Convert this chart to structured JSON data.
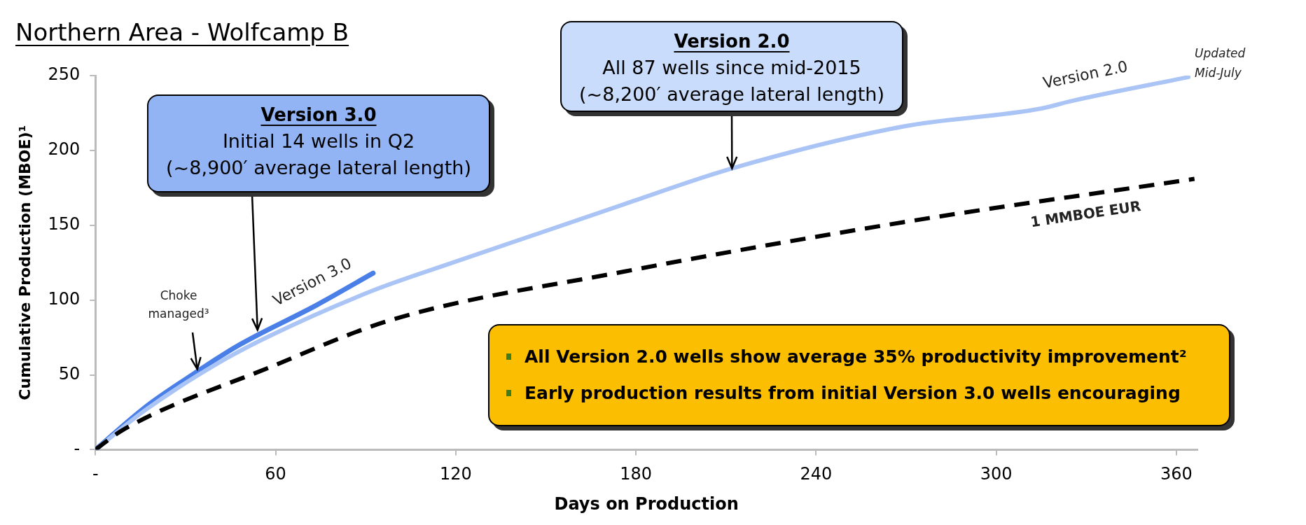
{
  "chart_data": {
    "type": "line",
    "title": "Northern Area - Wolfcamp B",
    "xlabel": "Days on Production",
    "ylabel": "Cumulative Production (MBOE)¹",
    "xlim": [
      0,
      367
    ],
    "xticks": [
      {
        "value": 0,
        "label": "-"
      },
      60,
      120,
      180,
      240,
      300,
      360
    ],
    "ylim": [
      0,
      250
    ],
    "yticks": [
      {
        "value": 0,
        "label": "-"
      },
      50,
      100,
      150,
      200,
      250
    ],
    "grid": false,
    "legend": false,
    "marker": "none",
    "series": [
      {
        "name": "Version 3.0",
        "color": "#4a7fe8",
        "line_style": "solid",
        "x": [
          0,
          17,
          33,
          47,
          74,
          92.5
        ],
        "values": [
          0,
          29,
          51,
          69,
          97,
          118
        ]
      },
      {
        "name": "Version 2.0",
        "color": "#a9c4f5",
        "line_style": "solid",
        "x": [
          0,
          17,
          41,
          58,
          92,
          119,
          176,
          212,
          269,
          315,
          325,
          364
        ],
        "values": [
          0,
          27,
          58,
          76,
          106,
          125,
          164,
          188,
          216,
          228,
          233,
          249
        ]
      },
      {
        "name": "1 MMBOE EUR",
        "color": "#000000",
        "line_style": "dashed",
        "x": [
          0,
          9,
          58,
          99,
          176,
          269,
          366
        ],
        "values": [
          0,
          13,
          55,
          87,
          119,
          152,
          181
        ]
      }
    ],
    "annotations": [
      {
        "text": "Version 3.0\nInitial 14 wells in Q2\n(~8,900′ average lateral length)",
        "x": 54,
        "y": 80
      },
      {
        "text": "Version 2.0\nAll 87 wells since mid-2015\n(~8,200′ average lateral length)",
        "x": 212,
        "y": 188
      },
      {
        "text": "Choke\nmanaged³",
        "x": 33,
        "y": 51
      },
      "Updated\nMid-July",
      "All Version 2.0 wells show average 35% productivity improvement²",
      "Early production results from initial Version 3.0 wells encouraging"
    ]
  }
}
